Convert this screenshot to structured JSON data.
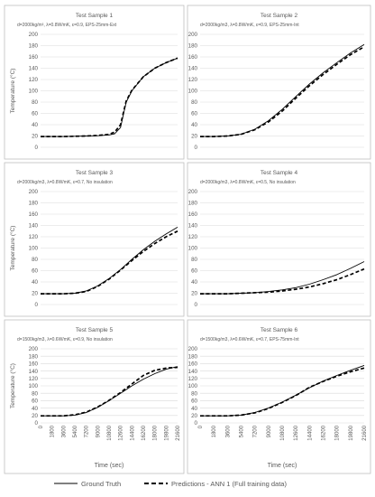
{
  "chart_data": [
    {
      "type": "line",
      "title": "Test Sample 1",
      "subtitle": "d=2000kg/m³, λ=0.8W/mK, ε=0.9, EPS-25mm-Ext",
      "ylabel": "Temperature (°C)",
      "xlabel": "",
      "ylim": [
        0,
        200
      ],
      "xlim": [
        0,
        21600
      ],
      "yticks": [
        "0",
        "20",
        "40",
        "60",
        "80",
        "100",
        "120",
        "140",
        "160",
        "180",
        "200"
      ],
      "xticks": [],
      "grid": true,
      "x": [
        0,
        1800,
        3600,
        5400,
        7200,
        9000,
        10800,
        11700,
        12600,
        13500,
        14400,
        16200,
        18000,
        19800,
        21600
      ],
      "series": [
        {
          "name": "Ground Truth",
          "values": [
            19,
            19,
            19,
            19.5,
            20,
            20.5,
            22,
            24,
            35,
            80,
            100,
            125,
            140,
            150,
            158
          ]
        },
        {
          "name": "Predictions - ANN 1 (Full training data)",
          "values": [
            19,
            19,
            19,
            19.5,
            20,
            21,
            23,
            27,
            40,
            82,
            101,
            125,
            140,
            150,
            158
          ]
        }
      ]
    },
    {
      "type": "line",
      "title": "Test Sample 2",
      "subtitle": "d=2000kg/m3, λ=0.8W/mK, ε=0.9, EPS-25mm-Int",
      "ylabel": "",
      "xlabel": "",
      "ylim": [
        0,
        200
      ],
      "xlim": [
        0,
        21600
      ],
      "yticks": [
        "0",
        "20",
        "40",
        "60",
        "80",
        "100",
        "120",
        "140",
        "160",
        "180",
        "200"
      ],
      "xticks": [],
      "grid": true,
      "x": [
        0,
        1800,
        3600,
        5400,
        7200,
        9000,
        10800,
        12600,
        14400,
        16200,
        18000,
        19800,
        21600
      ],
      "series": [
        {
          "name": "Ground Truth",
          "values": [
            19,
            19,
            20,
            23,
            32,
            47,
            67,
            90,
            112,
            132,
            150,
            167,
            182
          ]
        },
        {
          "name": "Predictions - ANN 1 (Full training data)",
          "values": [
            19,
            19,
            20,
            23,
            31,
            45,
            64,
            87,
            109,
            129,
            147,
            164,
            178
          ]
        }
      ]
    },
    {
      "type": "line",
      "title": "Test Sample 3",
      "subtitle": "d=2000kg/m3, λ=0.8W/mK, ε=0.7, No insulation",
      "ylabel": "Temperature (°C)",
      "xlabel": "",
      "ylim": [
        0,
        200
      ],
      "xlim": [
        0,
        21600
      ],
      "yticks": [
        "0",
        "20",
        "40",
        "60",
        "80",
        "100",
        "120",
        "140",
        "160",
        "180",
        "200"
      ],
      "xticks": [],
      "grid": true,
      "x": [
        0,
        1800,
        3600,
        5400,
        7200,
        9000,
        10800,
        12600,
        14400,
        16200,
        18000,
        19800,
        21600
      ],
      "series": [
        {
          "name": "Ground Truth",
          "values": [
            19,
            19,
            19,
            20,
            24,
            33,
            46,
            62,
            80,
            97,
            112,
            125,
            137
          ]
        },
        {
          "name": "Predictions - ANN 1 (Full training data)",
          "values": [
            19,
            19,
            19,
            20,
            23,
            32,
            45,
            61,
            78,
            94,
            108,
            120,
            130
          ]
        }
      ]
    },
    {
      "type": "line",
      "title": "Test Sample 4",
      "subtitle": "d=2000kg/m3, λ=0.8W/mK, ε=0.5, No insulation",
      "ylabel": "",
      "xlabel": "",
      "ylim": [
        0,
        200
      ],
      "xlim": [
        0,
        21600
      ],
      "yticks": [
        "0",
        "20",
        "40",
        "60",
        "80",
        "100",
        "120",
        "140",
        "160",
        "180",
        "200"
      ],
      "xticks": [],
      "grid": true,
      "x": [
        0,
        1800,
        3600,
        5400,
        7200,
        9000,
        10800,
        12600,
        14400,
        16200,
        18000,
        19800,
        21600
      ],
      "series": [
        {
          "name": "Ground Truth",
          "values": [
            19,
            19,
            19,
            20,
            21,
            23,
            26,
            30,
            36,
            44,
            53,
            64,
            76
          ]
        },
        {
          "name": "Predictions - ANN 1 (Full training data)",
          "values": [
            19,
            19,
            19,
            20,
            21,
            22,
            24,
            27,
            31,
            37,
            44,
            53,
            63
          ]
        }
      ]
    },
    {
      "type": "line",
      "title": "Test Sample 5",
      "subtitle": "d=1500kg/m3, λ=0.6W/mK, ε=0.9, No insulation",
      "ylabel": "Temperature (°C)",
      "xlabel": "Time (sec)",
      "ylim": [
        0,
        200
      ],
      "xlim": [
        0,
        21600
      ],
      "yticks": [
        "0",
        "20",
        "40",
        "60",
        "80",
        "100",
        "120",
        "140",
        "160",
        "180",
        "200"
      ],
      "xticks": [
        "0",
        "1800",
        "3600",
        "5400",
        "7200",
        "9000",
        "10800",
        "12600",
        "14400",
        "16200",
        "18000",
        "19800",
        "21600"
      ],
      "grid": true,
      "x": [
        0,
        1800,
        3600,
        5400,
        7200,
        9000,
        10800,
        12600,
        14400,
        16200,
        18000,
        19800,
        21600
      ],
      "series": [
        {
          "name": "Ground Truth",
          "values": [
            19,
            19,
            19,
            21,
            28,
            42,
            60,
            80,
            100,
            118,
            133,
            145,
            152
          ]
        },
        {
          "name": "Predictions - ANN 1 (Full training data)",
          "values": [
            19,
            19,
            19,
            22,
            29,
            43,
            61,
            82,
            105,
            128,
            142,
            148,
            150
          ]
        }
      ]
    },
    {
      "type": "line",
      "title": "Test Sample 6",
      "subtitle": "d=1500kg/m3, λ=0.6W/mK, ε=0.7, EPS-75mm-Int",
      "ylabel": "",
      "xlabel": "Time (sec)",
      "ylim": [
        0,
        200
      ],
      "xlim": [
        0,
        21600
      ],
      "yticks": [
        "0",
        "20",
        "40",
        "60",
        "80",
        "100",
        "120",
        "140",
        "160",
        "180",
        "200"
      ],
      "xticks": [
        "0",
        "1800",
        "3600",
        "5400",
        "7200",
        "9000",
        "10800",
        "12600",
        "14400",
        "16200",
        "18000",
        "19800",
        "21600"
      ],
      "grid": true,
      "x": [
        0,
        1800,
        3600,
        5400,
        7200,
        9000,
        10800,
        12600,
        14400,
        16200,
        18000,
        19800,
        21600
      ],
      "series": [
        {
          "name": "Ground Truth",
          "values": [
            19,
            19,
            19,
            21,
            28,
            40,
            56,
            75,
            95,
            113,
            128,
            142,
            155
          ]
        },
        {
          "name": "Predictions - ANN 1 (Full training data)",
          "values": [
            19,
            19,
            19,
            21,
            27,
            39,
            55,
            74,
            96,
            112,
            126,
            138,
            148
          ]
        }
      ]
    }
  ],
  "legend": {
    "placement": "bottom",
    "items": [
      {
        "label": "Ground Truth",
        "style": "solid"
      },
      {
        "label": "Predictions - ANN 1 (Full training data)",
        "style": "dashed"
      }
    ]
  },
  "colors": {
    "line": "#000000",
    "grid": "#d9d9d9",
    "panel_border": "#bfbfbf",
    "text": "#595959"
  }
}
